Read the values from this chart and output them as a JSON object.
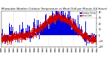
{
  "title": "Milwaukee Weather Outdoor Temperature vs Wind Chill per Minute (24 Hours)",
  "title_fontsize": 2.8,
  "bg_color": "#ffffff",
  "plot_bg_color": "#ffffff",
  "bar_color": "#0000dd",
  "line_color": "#cc0000",
  "line_style": "--",
  "ylim": [
    -20,
    42
  ],
  "yticks": [
    -20,
    -10,
    0,
    10,
    20,
    30,
    40
  ],
  "n_points": 1440,
  "seed": 42,
  "grid_color": "#bbbbbb",
  "grid_style": ":",
  "n_gridlines": 7,
  "legend_bar_color": "#0000dd",
  "legend_line_color": "#cc0000",
  "ylabel_fontsize": 2.5,
  "xlabel_fontsize": 2.0,
  "figwidth": 1.6,
  "figheight": 0.87,
  "dpi": 100
}
